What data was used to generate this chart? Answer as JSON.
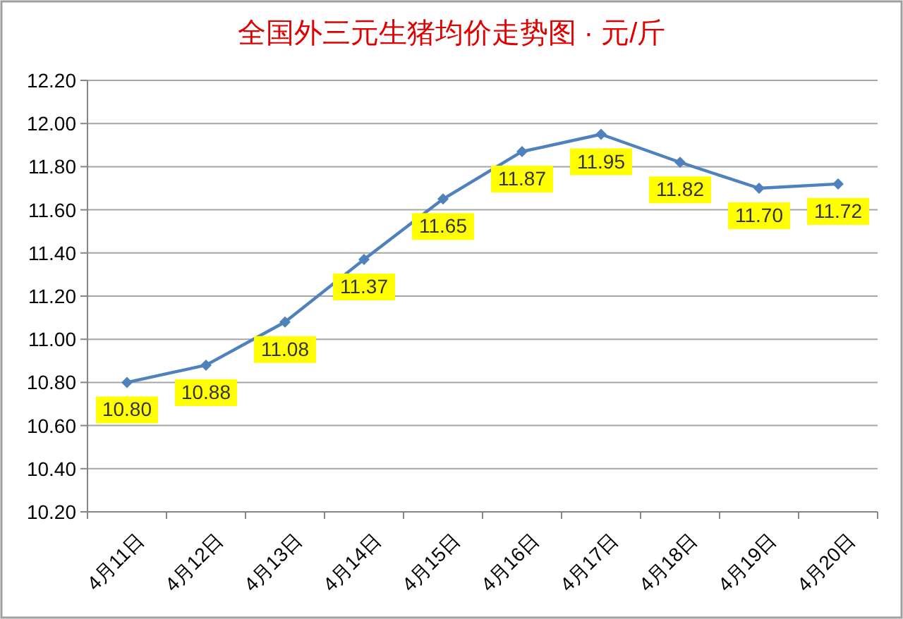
{
  "chart_data": {
    "type": "line",
    "title": "全国外三元生猪均价走势图 · 元/斤",
    "categories": [
      "4月11日",
      "4月12日",
      "4月13日",
      "4月14日",
      "4月15日",
      "4月16日",
      "4月17日",
      "4月18日",
      "4月19日",
      "4月20日"
    ],
    "series": [
      {
        "color": "#4f81bd",
        "values": [
          10.8,
          10.88,
          11.08,
          11.37,
          11.65,
          11.87,
          11.95,
          11.82,
          11.7,
          11.72
        ],
        "value_labels": [
          "10.80",
          "10.88",
          "11.08",
          "11.37",
          "11.65",
          "11.87",
          "11.95",
          "11.82",
          "11.70",
          "11.72"
        ]
      }
    ],
    "ylim": [
      10.2,
      12.2
    ],
    "yticks": [
      {
        "value": 10.2,
        "label": "10.20"
      },
      {
        "value": 10.4,
        "label": "10.40"
      },
      {
        "value": 10.6,
        "label": "10.60"
      },
      {
        "value": 10.8,
        "label": "10.80"
      },
      {
        "value": 11.0,
        "label": "11.00"
      },
      {
        "value": 11.2,
        "label": "11.20"
      },
      {
        "value": 11.4,
        "label": "11.40"
      },
      {
        "value": 11.6,
        "label": "11.60"
      },
      {
        "value": 11.8,
        "label": "11.80"
      },
      {
        "value": 12.0,
        "label": "12.00"
      },
      {
        "value": 12.2,
        "label": "12.20"
      }
    ],
    "grid": "y",
    "marker": "diamond"
  }
}
